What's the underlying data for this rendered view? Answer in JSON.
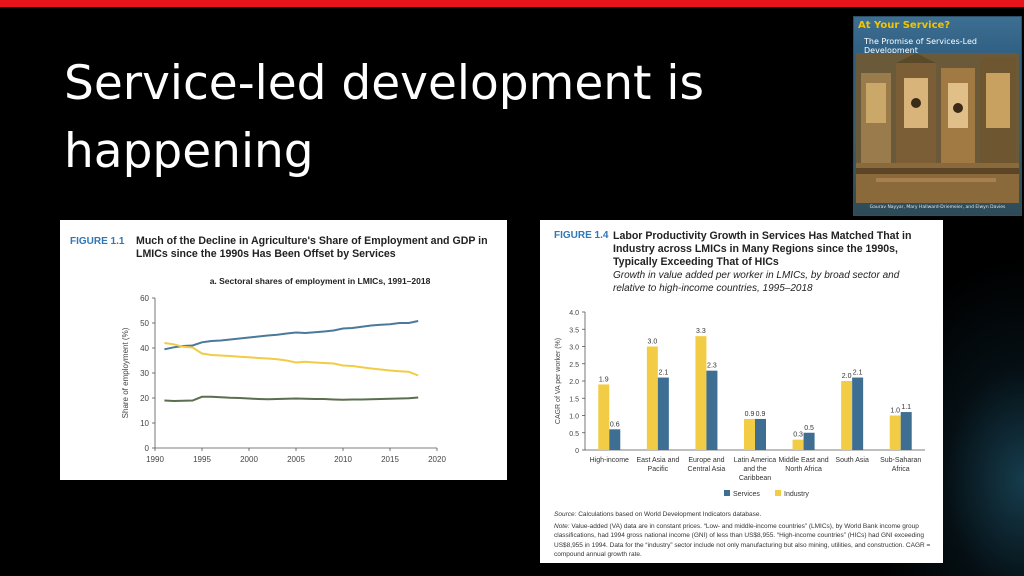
{
  "slide": {
    "title": "Service-led development is happening",
    "accent_color": "#e8141b",
    "background": "#000000"
  },
  "book_cover": {
    "title": "At Your Service?",
    "subtitle": "The Promise of Services-Led Development",
    "authors": "Gaurav Nayyar, Mary Hallward-Driemeier, and Elwyn Davies"
  },
  "figure_1_1": {
    "label": "FIGURE 1.1",
    "title": "Much of the Decline in Agriculture's Share of Employment and GDP in LMICs since the 1990s Has Been Offset by Services",
    "panel_title": "a. Sectoral shares of employment in LMICs, 1991–2018"
  },
  "figure_1_4": {
    "label": "FIGURE 1.4",
    "title": "Labor Productivity Growth in Services Has Matched That in Industry across LMICs in Many Regions since the 1990s, Typically Exceeding That of HICs",
    "subtitle": "Growth in value added per worker in LMICs, by broad sector and relative to high-income countries, 1995–2018",
    "source_label": "Source:",
    "source_text": "Calculations based on World Development Indicators database.",
    "note_label": "Note:",
    "note_text": "Value-added (VA) data are in constant prices. “Low- and middle-income countries” (LMICs), by World Bank income group classifications, had 1994 gross national income (GNI) of less than US$8,955. “High-income countries” (HICs) had GNI exceeding US$8,955 in 1994. Data for the “industry” sector include not only manufacturing but also mining, utilities, and construction. CAGR = compound annual growth rate."
  },
  "chart_data": [
    {
      "type": "line",
      "ylabel": "Share of employment (%)",
      "xlabel": "",
      "xlim": [
        1990,
        2020
      ],
      "ylim": [
        0,
        60
      ],
      "xticks": [
        1990,
        1995,
        2000,
        2005,
        2010,
        2015,
        2020
      ],
      "yticks": [
        0,
        10,
        20,
        30,
        40,
        50,
        60
      ],
      "grid": false,
      "series": [
        {
          "color": "#4a7a99",
          "points": [
            [
              1991,
              39.5
            ],
            [
              1992,
              40.3
            ],
            [
              1993,
              40.8
            ],
            [
              1994,
              41.0
            ],
            [
              1995,
              42.3
            ],
            [
              1996,
              42.8
            ],
            [
              1997,
              43.0
            ],
            [
              1998,
              43.4
            ],
            [
              1999,
              43.8
            ],
            [
              2000,
              44.2
            ],
            [
              2001,
              44.6
            ],
            [
              2002,
              45.0
            ],
            [
              2003,
              45.3
            ],
            [
              2004,
              45.8
            ],
            [
              2005,
              46.2
            ],
            [
              2006,
              46.0
            ],
            [
              2007,
              46.3
            ],
            [
              2008,
              46.6
            ],
            [
              2009,
              47.0
            ],
            [
              2010,
              47.8
            ],
            [
              2011,
              48.0
            ],
            [
              2012,
              48.5
            ],
            [
              2013,
              49.0
            ],
            [
              2014,
              49.3
            ],
            [
              2015,
              49.5
            ],
            [
              2016,
              50.0
            ],
            [
              2017,
              50.0
            ],
            [
              2018,
              50.8
            ]
          ]
        },
        {
          "color": "#f2cc45",
          "points": [
            [
              1991,
              42.0
            ],
            [
              1992,
              41.5
            ],
            [
              1993,
              40.5
            ],
            [
              1994,
              40.2
            ],
            [
              1995,
              37.8
            ],
            [
              1996,
              37.2
            ],
            [
              1997,
              37.0
            ],
            [
              1998,
              36.8
            ],
            [
              1999,
              36.5
            ],
            [
              2000,
              36.3
            ],
            [
              2001,
              36.0
            ],
            [
              2002,
              35.8
            ],
            [
              2003,
              35.5
            ],
            [
              2004,
              35.0
            ],
            [
              2005,
              34.2
            ],
            [
              2006,
              34.5
            ],
            [
              2007,
              34.2
            ],
            [
              2008,
              34.0
            ],
            [
              2009,
              33.8
            ],
            [
              2010,
              33.0
            ],
            [
              2011,
              32.8
            ],
            [
              2012,
              32.3
            ],
            [
              2013,
              31.8
            ],
            [
              2014,
              31.4
            ],
            [
              2015,
              31.0
            ],
            [
              2016,
              30.7
            ],
            [
              2017,
              30.5
            ],
            [
              2018,
              29.0
            ]
          ]
        },
        {
          "color": "#5b6e4f",
          "points": [
            [
              1991,
              19.0
            ],
            [
              1992,
              18.8
            ],
            [
              1993,
              18.9
            ],
            [
              1994,
              19.0
            ],
            [
              1995,
              20.5
            ],
            [
              1996,
              20.5
            ],
            [
              1997,
              20.3
            ],
            [
              1998,
              20.1
            ],
            [
              1999,
              20.0
            ],
            [
              2000,
              19.8
            ],
            [
              2001,
              19.6
            ],
            [
              2002,
              19.5
            ],
            [
              2003,
              19.6
            ],
            [
              2004,
              19.7
            ],
            [
              2005,
              19.8
            ],
            [
              2006,
              19.7
            ],
            [
              2007,
              19.6
            ],
            [
              2008,
              19.6
            ],
            [
              2009,
              19.4
            ],
            [
              2010,
              19.3
            ],
            [
              2011,
              19.4
            ],
            [
              2012,
              19.4
            ],
            [
              2013,
              19.5
            ],
            [
              2014,
              19.6
            ],
            [
              2015,
              19.7
            ],
            [
              2016,
              19.8
            ],
            [
              2017,
              19.9
            ],
            [
              2018,
              20.2
            ]
          ]
        }
      ]
    },
    {
      "type": "bar",
      "ylabel": "CAGR of VA per worker (%)",
      "ylim": [
        0,
        4.0
      ],
      "yticks": [
        "0",
        "0.5",
        "1.0",
        "1.5",
        "2.0",
        "2.5",
        "3.0",
        "3.5",
        "4.0"
      ],
      "categories": [
        "High-income",
        "East Asia and Pacific",
        "Europe and Central Asia",
        "Latin America and the Caribbean",
        "Middle East and North Africa",
        "South Asia",
        "Sub-Saharan Africa"
      ],
      "category_lines": [
        [
          "High-income"
        ],
        [
          "East Asia and",
          "Pacific"
        ],
        [
          "Europe and",
          "Central Asia"
        ],
        [
          "Latin America",
          "and the",
          "Caribbean"
        ],
        [
          "Middle East and",
          "North Africa"
        ],
        [
          "South Asia"
        ],
        [
          "Sub-Saharan",
          "Africa"
        ]
      ],
      "series": [
        {
          "name": "Industry",
          "color": "#f2cc45",
          "values": [
            1.9,
            3.0,
            3.3,
            0.9,
            0.3,
            2.0,
            1.0
          ],
          "labels": [
            "1.9",
            "3.0",
            "3.3",
            "0.9",
            "0.3",
            "2.0",
            "1.0"
          ]
        },
        {
          "name": "Services",
          "color": "#3e6f93",
          "values": [
            0.6,
            2.1,
            2.3,
            0.9,
            0.5,
            2.1,
            1.1
          ],
          "labels": [
            "0.6",
            "2.1",
            "2.3",
            "0.9",
            "0.5",
            "2.1",
            "1.1"
          ]
        }
      ],
      "legend": {
        "placement": "bottom",
        "entries": [
          {
            "label": "Services",
            "color": "#3e6f93"
          },
          {
            "label": "Industry",
            "color": "#f2cc45"
          }
        ]
      }
    }
  ]
}
